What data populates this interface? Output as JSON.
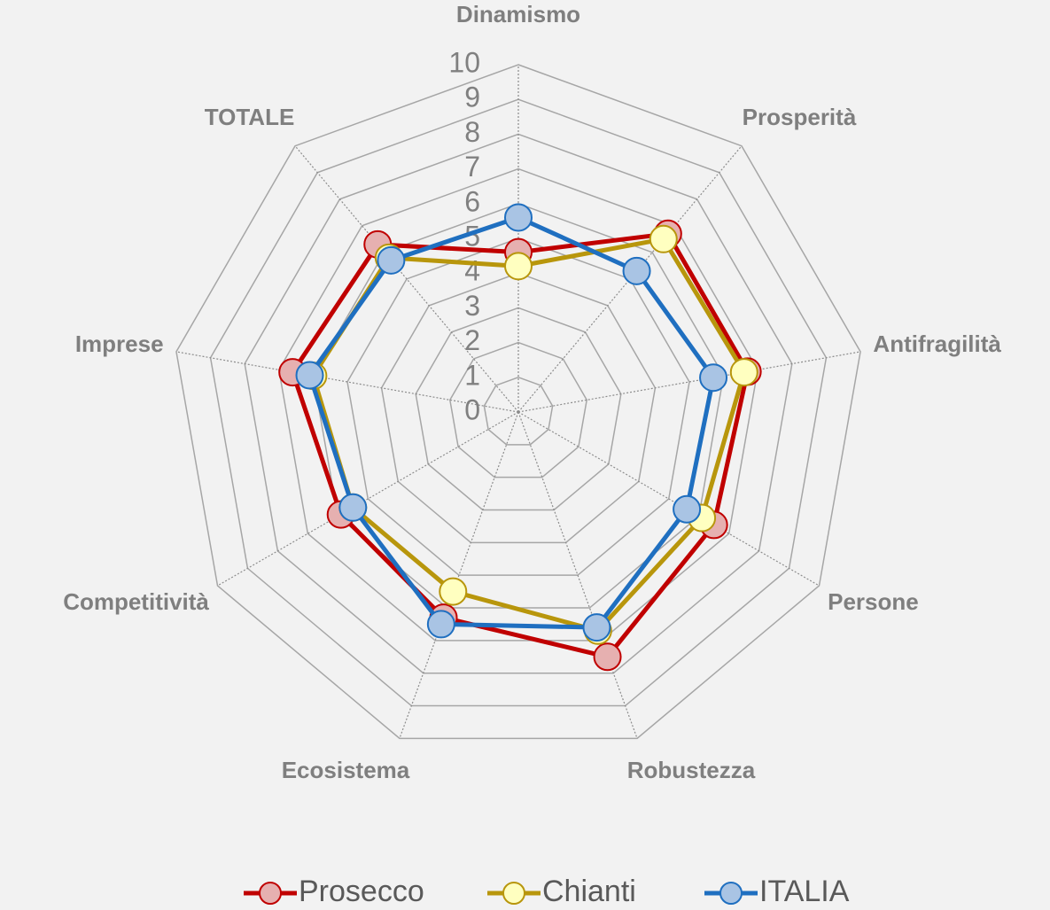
{
  "chart_data": {
    "type": "radar",
    "categories": [
      "Dinamismo",
      "Prosperità",
      "Antifragilità",
      "Persone",
      "Robustezza",
      "Ecosistema",
      "Competitività",
      "Imprese",
      "TOTALE"
    ],
    "ylim": [
      0,
      10
    ],
    "yticks": [
      0,
      1,
      2,
      3,
      4,
      5,
      6,
      7,
      8,
      9,
      10
    ],
    "grid": true,
    "legend": "bottom",
    "series": [
      {
        "name": "Prosecco",
        "color": "#c00000",
        "marker_fill": "#e6b0b0",
        "values": [
          4.6,
          6.7,
          6.7,
          6.5,
          7.5,
          6.3,
          5.9,
          6.6,
          6.3
        ]
      },
      {
        "name": "Chianti",
        "color": "#b8960c",
        "marker_fill": "#ffffc0",
        "values": [
          4.2,
          6.5,
          6.6,
          6.1,
          6.7,
          5.5,
          5.5,
          6.0,
          5.8
        ]
      },
      {
        "name": "ITALIA",
        "color": "#1f6fc0",
        "marker_fill": "#a9c4e4",
        "values": [
          5.6,
          5.3,
          5.7,
          5.6,
          6.6,
          6.5,
          5.5,
          6.1,
          5.7
        ]
      }
    ]
  }
}
